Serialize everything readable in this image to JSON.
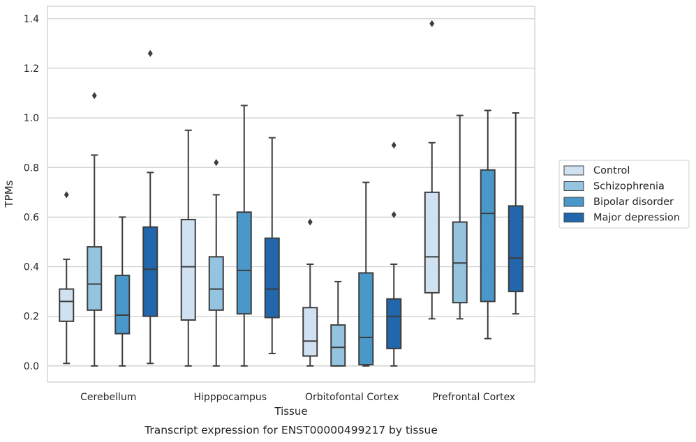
{
  "caption": "Transcript expression for ENST00000499217 by tissue",
  "chart_data": {
    "type": "boxplot",
    "xlabel": "Tissue",
    "ylabel": "TPMs",
    "ylim": [
      -0.065,
      1.45
    ],
    "yticks": [
      0.0,
      0.2,
      0.4,
      0.6,
      0.8,
      1.0,
      1.2,
      1.4
    ],
    "ytick_labels": [
      "0.0",
      "0.2",
      "0.4",
      "0.6",
      "0.8",
      "1.0",
      "1.2",
      "1.4"
    ],
    "grid": "horizontal",
    "legend_position": "right",
    "categories": [
      "Cerebellum",
      "Hipppocampus",
      "Orbitofontal Cortex",
      "Prefrontal Cortex"
    ],
    "series": [
      {
        "name": "Control",
        "color": "#d0e1f2",
        "boxes": [
          {
            "whislo": 0.01,
            "q1": 0.18,
            "med": 0.26,
            "q3": 0.31,
            "whishi": 0.43,
            "fliers": [
              0.69
            ]
          },
          {
            "whislo": 0.0,
            "q1": 0.185,
            "med": 0.4,
            "q3": 0.59,
            "whishi": 0.95,
            "fliers": []
          },
          {
            "whislo": 0.0,
            "q1": 0.04,
            "med": 0.1,
            "q3": 0.235,
            "whishi": 0.41,
            "fliers": [
              0.58
            ]
          },
          {
            "whislo": 0.19,
            "q1": 0.295,
            "med": 0.44,
            "q3": 0.7,
            "whishi": 0.9,
            "fliers": [
              1.38
            ]
          }
        ]
      },
      {
        "name": "Schizophrenia",
        "color": "#94c4df",
        "boxes": [
          {
            "whislo": 0.0,
            "q1": 0.225,
            "med": 0.33,
            "q3": 0.48,
            "whishi": 0.85,
            "fliers": [
              1.09
            ]
          },
          {
            "whislo": 0.0,
            "q1": 0.225,
            "med": 0.31,
            "q3": 0.44,
            "whishi": 0.69,
            "fliers": [
              0.82
            ]
          },
          {
            "whislo": 0.0,
            "q1": 0.0,
            "med": 0.075,
            "q3": 0.165,
            "whishi": 0.34,
            "fliers": []
          },
          {
            "whislo": 0.19,
            "q1": 0.255,
            "med": 0.415,
            "q3": 0.58,
            "whishi": 1.01,
            "fliers": []
          }
        ]
      },
      {
        "name": "Bipolar disorder",
        "color": "#4a98c9",
        "boxes": [
          {
            "whislo": 0.0,
            "q1": 0.13,
            "med": 0.205,
            "q3": 0.365,
            "whishi": 0.6,
            "fliers": []
          },
          {
            "whislo": 0.0,
            "q1": 0.21,
            "med": 0.385,
            "q3": 0.62,
            "whishi": 1.05,
            "fliers": []
          },
          {
            "whislo": 0.0,
            "q1": 0.005,
            "med": 0.115,
            "q3": 0.375,
            "whishi": 0.74,
            "fliers": []
          },
          {
            "whislo": 0.11,
            "q1": 0.26,
            "med": 0.615,
            "q3": 0.79,
            "whishi": 1.03,
            "fliers": []
          }
        ]
      },
      {
        "name": "Major depression",
        "color": "#2266ac",
        "boxes": [
          {
            "whislo": 0.01,
            "q1": 0.2,
            "med": 0.39,
            "q3": 0.56,
            "whishi": 0.78,
            "fliers": [
              1.26
            ]
          },
          {
            "whislo": 0.05,
            "q1": 0.195,
            "med": 0.31,
            "q3": 0.515,
            "whishi": 0.92,
            "fliers": []
          },
          {
            "whislo": 0.0,
            "q1": 0.07,
            "med": 0.2,
            "q3": 0.27,
            "whishi": 0.41,
            "fliers": [
              0.61,
              0.89
            ]
          },
          {
            "whislo": 0.21,
            "q1": 0.3,
            "med": 0.435,
            "q3": 0.645,
            "whishi": 1.02,
            "fliers": []
          }
        ]
      }
    ]
  }
}
